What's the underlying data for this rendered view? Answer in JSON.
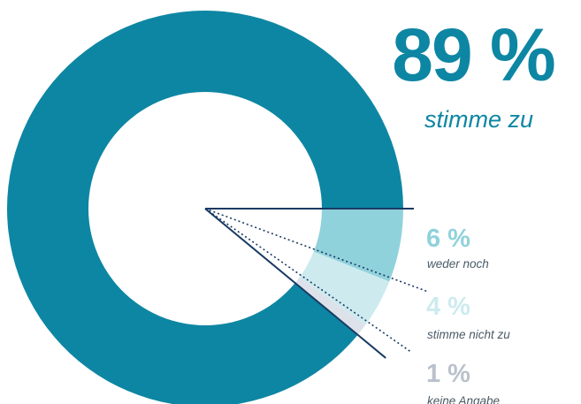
{
  "chart_data": {
    "type": "pie",
    "style": "donut",
    "slices": [
      {
        "label": "stimme zu",
        "value_label": "89 %",
        "value": 89,
        "color": "#0d86a3"
      },
      {
        "label": "weder noch",
        "value_label": "6 %",
        "value": 6,
        "color": "#90d2db"
      },
      {
        "label": "stimme nicht zu",
        "value_label": "4 %",
        "value": 4,
        "color": "#cdebef"
      },
      {
        "label": "keine Angabe",
        "value_label": "1 %",
        "value": 1,
        "color": "#dde2ea"
      }
    ],
    "colors": {
      "leader_solid": "#1a3a63",
      "leader_dotted": "#1a3a63",
      "label_grey": "#b9c1cc"
    }
  }
}
